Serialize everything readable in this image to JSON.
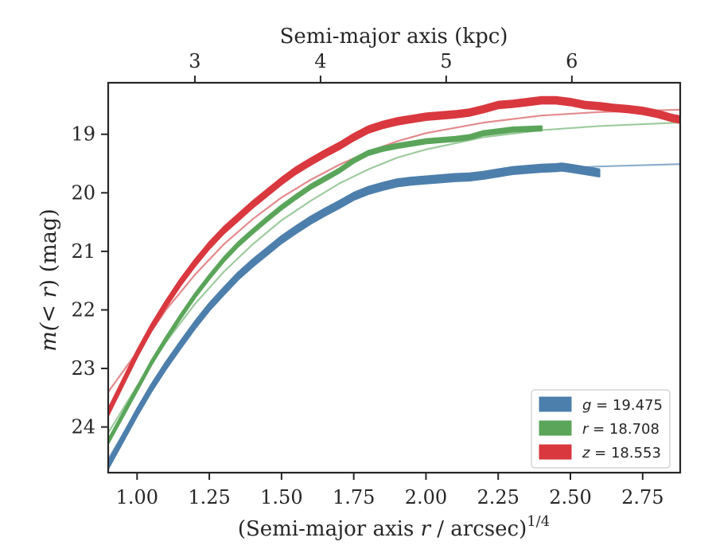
{
  "chart_data": {
    "type": "line",
    "top_axis_label": "Semi-major axis (kpc)",
    "top_axis_ticks": [
      {
        "value": 3,
        "label": "3"
      },
      {
        "value": 4,
        "label": "4"
      },
      {
        "value": 5,
        "label": "5"
      },
      {
        "value": 6,
        "label": "6"
      }
    ],
    "xlabel_main": "(Semi-major axis ",
    "xlabel_var": "r",
    "xlabel_tail": " / arcsec)",
    "xlabel_sup": "1/4",
    "ylabel_main": "m",
    "ylabel_paren": "(< ",
    "ylabel_var": "r",
    "ylabel_tail": ") (mag)",
    "xlim": [
      0.9,
      2.88
    ],
    "ylim": [
      24.78,
      18.12
    ],
    "y_inverted": true,
    "xticks": [
      "1.00",
      "1.25",
      "1.50",
      "1.75",
      "2.00",
      "2.25",
      "2.50",
      "2.75"
    ],
    "yticks": [
      "19",
      "20",
      "21",
      "22",
      "23",
      "24"
    ],
    "legend_position": "lower-right",
    "series": [
      {
        "band": "g",
        "value": "19.475",
        "color": "#4d7fac",
        "fit_color": "#8eaecb",
        "thickness_mag": 0.12,
        "x": [
          0.9,
          0.95,
          1.0,
          1.05,
          1.1,
          1.15,
          1.2,
          1.25,
          1.3,
          1.35,
          1.4,
          1.45,
          1.5,
          1.55,
          1.6,
          1.65,
          1.7,
          1.75,
          1.8,
          1.85,
          1.9,
          1.95,
          2.0,
          2.05,
          2.1,
          2.15,
          2.2,
          2.25,
          2.3,
          2.35,
          2.4,
          2.45,
          2.47,
          2.5,
          2.55,
          2.6
        ],
        "y": [
          24.65,
          24.2,
          23.75,
          23.33,
          22.95,
          22.6,
          22.26,
          21.95,
          21.68,
          21.42,
          21.2,
          21.0,
          20.8,
          20.63,
          20.47,
          20.33,
          20.2,
          20.06,
          19.96,
          19.89,
          19.83,
          19.8,
          19.78,
          19.76,
          19.74,
          19.73,
          19.7,
          19.66,
          19.62,
          19.6,
          19.58,
          19.57,
          19.56,
          19.58,
          19.62,
          19.66
        ],
        "fit_x": [
          0.9,
          1.0,
          1.1,
          1.2,
          1.3,
          1.4,
          1.5,
          1.6,
          1.7,
          1.8,
          1.9,
          2.0,
          2.2,
          2.4,
          2.6,
          2.88
        ],
        "fit_y": [
          24.55,
          23.72,
          22.94,
          22.28,
          21.7,
          21.22,
          20.82,
          20.5,
          20.22,
          20.02,
          19.88,
          19.78,
          19.66,
          19.59,
          19.55,
          19.51
        ]
      },
      {
        "band": "r",
        "value": "18.708",
        "color": "#5aa55a",
        "fit_color": "#9ecb9e",
        "thickness_mag": 0.07,
        "x": [
          0.9,
          0.95,
          1.0,
          1.05,
          1.1,
          1.15,
          1.2,
          1.25,
          1.3,
          1.35,
          1.4,
          1.45,
          1.5,
          1.55,
          1.6,
          1.65,
          1.7,
          1.75,
          1.8,
          1.85,
          1.9,
          1.95,
          2.0,
          2.05,
          2.1,
          2.15,
          2.2,
          2.25,
          2.3,
          2.35,
          2.4
        ],
        "y": [
          24.25,
          23.8,
          23.35,
          22.9,
          22.5,
          22.12,
          21.76,
          21.44,
          21.14,
          20.88,
          20.66,
          20.45,
          20.25,
          20.07,
          19.9,
          19.76,
          19.62,
          19.45,
          19.32,
          19.25,
          19.2,
          19.16,
          19.12,
          19.1,
          19.08,
          19.05,
          18.98,
          18.95,
          18.92,
          18.91,
          18.9
        ],
        "fit_x": [
          0.9,
          1.0,
          1.1,
          1.2,
          1.3,
          1.4,
          1.5,
          1.6,
          1.7,
          1.8,
          1.9,
          2.0,
          2.2,
          2.4,
          2.6,
          2.88
        ],
        "fit_y": [
          24.1,
          23.3,
          22.55,
          21.9,
          21.35,
          20.88,
          20.47,
          20.14,
          19.84,
          19.6,
          19.4,
          19.26,
          19.05,
          18.93,
          18.86,
          18.8
        ]
      },
      {
        "band": "z",
        "value": "18.553",
        "color": "#d9383f",
        "fit_color": "#e38a8d",
        "thickness_mag": 0.11,
        "x": [
          0.9,
          0.95,
          1.0,
          1.05,
          1.1,
          1.15,
          1.2,
          1.25,
          1.3,
          1.35,
          1.4,
          1.45,
          1.5,
          1.55,
          1.6,
          1.65,
          1.7,
          1.75,
          1.8,
          1.85,
          1.9,
          1.95,
          2.0,
          2.05,
          2.1,
          2.15,
          2.2,
          2.25,
          2.3,
          2.35,
          2.4,
          2.45,
          2.5,
          2.55,
          2.6,
          2.65,
          2.7,
          2.75,
          2.8,
          2.85,
          2.88
        ],
        "y": [
          23.75,
          23.25,
          22.75,
          22.3,
          21.9,
          21.53,
          21.2,
          20.9,
          20.64,
          20.42,
          20.2,
          20.0,
          19.8,
          19.62,
          19.47,
          19.33,
          19.2,
          19.05,
          18.92,
          18.84,
          18.78,
          18.74,
          18.7,
          18.68,
          18.66,
          18.63,
          18.57,
          18.5,
          18.48,
          18.45,
          18.42,
          18.42,
          18.45,
          18.5,
          18.52,
          18.55,
          18.57,
          18.6,
          18.65,
          18.72,
          18.75
        ],
        "fit_x": [
          0.9,
          1.0,
          1.1,
          1.2,
          1.3,
          1.4,
          1.5,
          1.6,
          1.7,
          1.8,
          1.9,
          2.0,
          2.2,
          2.4,
          2.6,
          2.88
        ],
        "fit_y": [
          23.4,
          22.72,
          22.0,
          21.4,
          20.88,
          20.45,
          20.08,
          19.78,
          19.52,
          19.3,
          19.12,
          18.98,
          18.8,
          18.68,
          18.62,
          18.58
        ]
      }
    ]
  }
}
